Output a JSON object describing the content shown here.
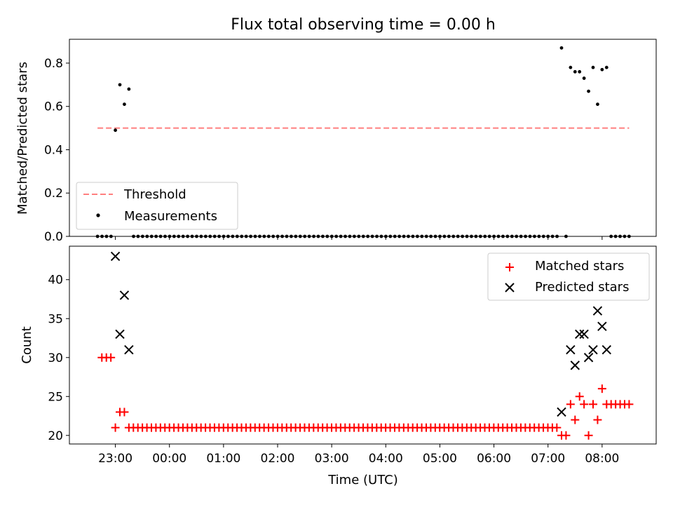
{
  "title": "Flux total observing time = 0.00 h",
  "colors": {
    "threshold": "#ff7f7f",
    "measurement": "#000000",
    "matched": "#ff0000",
    "predicted": "#000000"
  },
  "chart_data": [
    {
      "type": "scatter",
      "ylabel": "Matched/Predicted stars",
      "ylim": [
        0.0,
        0.91
      ],
      "yticks": [
        "0.0",
        "0.2",
        "0.4",
        "0.6",
        "0.8"
      ],
      "xlim": [
        22.15,
        9.0
      ],
      "legend": {
        "placement": "lower-left",
        "entries": [
          "Threshold",
          "Measurements"
        ]
      },
      "threshold": {
        "name": "Threshold",
        "value": 0.5,
        "x": [
          22.67,
          8.5
        ]
      },
      "measurements": {
        "name": "Measurements",
        "zero_start": 22.67,
        "zero_end": 8.5,
        "zero_step": 0.0833,
        "points": [
          {
            "x": "23:00",
            "y": 0.49
          },
          {
            "x": "23:05",
            "y": 0.7
          },
          {
            "x": "23:10",
            "y": 0.61
          },
          {
            "x": "23:15",
            "y": 0.68
          },
          {
            "x": "07:15",
            "y": 0.87
          },
          {
            "x": "07:25",
            "y": 0.78
          },
          {
            "x": "07:30",
            "y": 0.76
          },
          {
            "x": "07:35",
            "y": 0.76
          },
          {
            "x": "07:40",
            "y": 0.73
          },
          {
            "x": "07:45",
            "y": 0.67
          },
          {
            "x": "07:50",
            "y": 0.78
          },
          {
            "x": "07:55",
            "y": 0.61
          },
          {
            "x": "08:00",
            "y": 0.77
          },
          {
            "x": "08:05",
            "y": 0.78
          }
        ]
      }
    },
    {
      "type": "scatter",
      "ylabel": "Count",
      "xlabel": "Time (UTC)",
      "ylim": [
        18.9,
        44.3
      ],
      "yticks": [
        "20",
        "25",
        "30",
        "35",
        "40"
      ],
      "xticks": [
        "23:00",
        "00:00",
        "01:00",
        "02:00",
        "03:00",
        "04:00",
        "05:00",
        "06:00",
        "07:00",
        "08:00"
      ],
      "legend": {
        "placement": "upper-right",
        "entries": [
          "Matched stars",
          "Predicted stars"
        ]
      },
      "matched": {
        "name": "Matched stars",
        "baseline": 21,
        "baseline_start": 23.25,
        "baseline_end": 7.17,
        "points": [
          {
            "x": "22:45",
            "y": 30
          },
          {
            "x": "22:50",
            "y": 30
          },
          {
            "x": "22:55",
            "y": 30
          },
          {
            "x": "23:00",
            "y": 21
          },
          {
            "x": "23:05",
            "y": 23
          },
          {
            "x": "23:10",
            "y": 23
          },
          {
            "x": "07:15",
            "y": 20
          },
          {
            "x": "07:20",
            "y": 20
          },
          {
            "x": "07:25",
            "y": 24
          },
          {
            "x": "07:30",
            "y": 22
          },
          {
            "x": "07:35",
            "y": 25
          },
          {
            "x": "07:40",
            "y": 24
          },
          {
            "x": "07:45",
            "y": 20
          },
          {
            "x": "07:50",
            "y": 24
          },
          {
            "x": "07:55",
            "y": 22
          },
          {
            "x": "08:00",
            "y": 26
          },
          {
            "x": "08:05",
            "y": 24
          },
          {
            "x": "08:10",
            "y": 24
          },
          {
            "x": "08:15",
            "y": 24
          },
          {
            "x": "08:20",
            "y": 24
          },
          {
            "x": "08:25",
            "y": 24
          },
          {
            "x": "08:30",
            "y": 24
          }
        ]
      },
      "predicted": {
        "name": "Predicted stars",
        "points": [
          {
            "x": "23:00",
            "y": 43
          },
          {
            "x": "23:05",
            "y": 33
          },
          {
            "x": "23:10",
            "y": 38
          },
          {
            "x": "23:15",
            "y": 31
          },
          {
            "x": "07:15",
            "y": 23
          },
          {
            "x": "07:25",
            "y": 31
          },
          {
            "x": "07:30",
            "y": 29
          },
          {
            "x": "07:35",
            "y": 33
          },
          {
            "x": "07:40",
            "y": 33
          },
          {
            "x": "07:45",
            "y": 30
          },
          {
            "x": "07:50",
            "y": 31
          },
          {
            "x": "07:55",
            "y": 36
          },
          {
            "x": "08:00",
            "y": 34
          },
          {
            "x": "08:05",
            "y": 31
          }
        ]
      }
    }
  ]
}
